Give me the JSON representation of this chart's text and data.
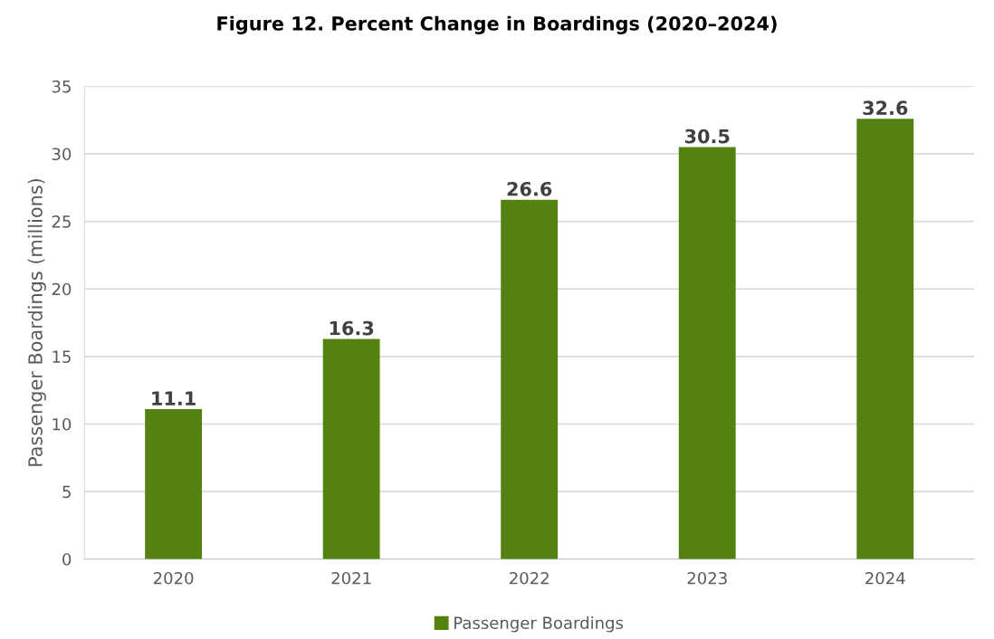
{
  "chart_data": {
    "type": "bar",
    "title": "Figure 12. Percent Change in Boardings (2020–2024)",
    "ylabel": "Passenger Boardings (millions)",
    "categories": [
      "2020",
      "2021",
      "2022",
      "2023",
      "2024"
    ],
    "series": [
      {
        "name": "Passenger Boardings",
        "color": "#548211",
        "values": [
          11.1,
          16.3,
          26.6,
          30.5,
          32.6
        ]
      }
    ],
    "ylim": [
      0,
      35
    ],
    "yticks": [
      0,
      5,
      10,
      15,
      20,
      25,
      30,
      35
    ],
    "grid": "y",
    "legend": "bottom",
    "data_labels": true
  }
}
